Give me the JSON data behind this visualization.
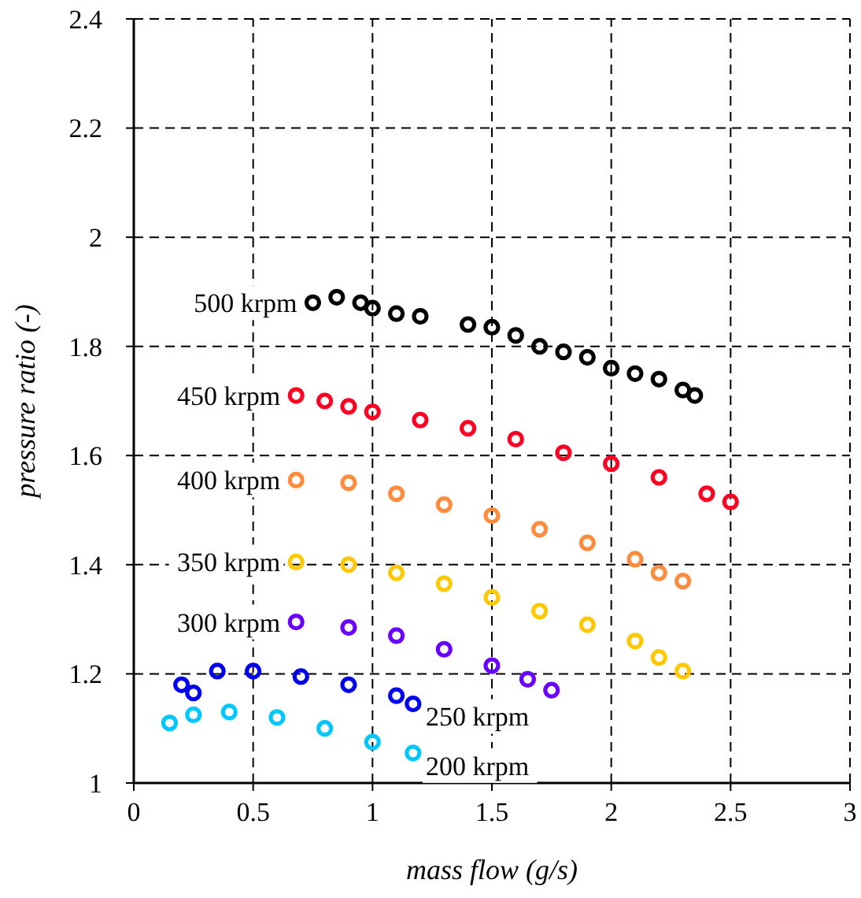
{
  "chart_data": {
    "type": "scatter",
    "xlabel": "mass flow (g/s)",
    "ylabel": "pressure ratio (-)",
    "xlim": [
      0,
      3
    ],
    "ylim": [
      1,
      2.4
    ],
    "xticks": [
      0,
      0.5,
      1,
      1.5,
      2,
      2.5,
      3
    ],
    "yticks": [
      1,
      1.2,
      1.4,
      1.6,
      1.8,
      2,
      2.2,
      2.4
    ],
    "grid": true,
    "marker": "circle",
    "series": [
      {
        "name": "500 krpm",
        "color": "#000000",
        "x": [
          0.75,
          0.85,
          0.95,
          1.0,
          1.1,
          1.2,
          1.4,
          1.5,
          1.6,
          1.7,
          1.8,
          1.9,
          2.0,
          2.1,
          2.2,
          2.3,
          2.35
        ],
        "values": [
          1.88,
          1.89,
          1.88,
          1.87,
          1.86,
          1.855,
          1.84,
          1.835,
          1.82,
          1.8,
          1.79,
          1.78,
          1.76,
          1.75,
          1.74,
          1.72,
          1.71
        ]
      },
      {
        "name": "450 krpm",
        "color": "#ff0022",
        "x": [
          0.68,
          0.8,
          0.9,
          1.0,
          1.2,
          1.4,
          1.6,
          1.8,
          2.0,
          2.2,
          2.4,
          2.5
        ],
        "values": [
          1.71,
          1.7,
          1.69,
          1.68,
          1.665,
          1.65,
          1.63,
          1.605,
          1.585,
          1.56,
          1.53,
          1.515
        ]
      },
      {
        "name": "400 krpm",
        "color": "#ff8c3c",
        "x": [
          0.68,
          0.9,
          1.1,
          1.3,
          1.5,
          1.7,
          1.9,
          2.1,
          2.2,
          2.3
        ],
        "values": [
          1.555,
          1.55,
          1.53,
          1.51,
          1.49,
          1.465,
          1.44,
          1.41,
          1.385,
          1.37
        ]
      },
      {
        "name": "350 krpm",
        "color": "#ffc800",
        "x": [
          0.68,
          0.9,
          1.1,
          1.3,
          1.5,
          1.7,
          1.9,
          2.1,
          2.2,
          2.3
        ],
        "values": [
          1.405,
          1.4,
          1.385,
          1.365,
          1.34,
          1.315,
          1.29,
          1.26,
          1.23,
          1.205
        ]
      },
      {
        "name": "300 krpm",
        "color": "#6a00ff",
        "x": [
          0.68,
          0.9,
          1.1,
          1.3,
          1.5,
          1.65,
          1.75
        ],
        "values": [
          1.295,
          1.285,
          1.27,
          1.245,
          1.215,
          1.19,
          1.17
        ]
      },
      {
        "name": "250 krpm",
        "color": "#0000f0",
        "x": [
          0.2,
          0.25,
          0.35,
          0.5,
          0.7,
          0.9,
          1.1,
          1.17
        ],
        "values": [
          1.18,
          1.165,
          1.205,
          1.205,
          1.195,
          1.18,
          1.16,
          1.145
        ]
      },
      {
        "name": "200 krpm",
        "color": "#00c8ff",
        "x": [
          0.15,
          0.25,
          0.4,
          0.6,
          0.8,
          1.0,
          1.17
        ],
        "values": [
          1.11,
          1.125,
          1.13,
          1.12,
          1.1,
          1.075,
          1.055
        ]
      }
    ]
  }
}
